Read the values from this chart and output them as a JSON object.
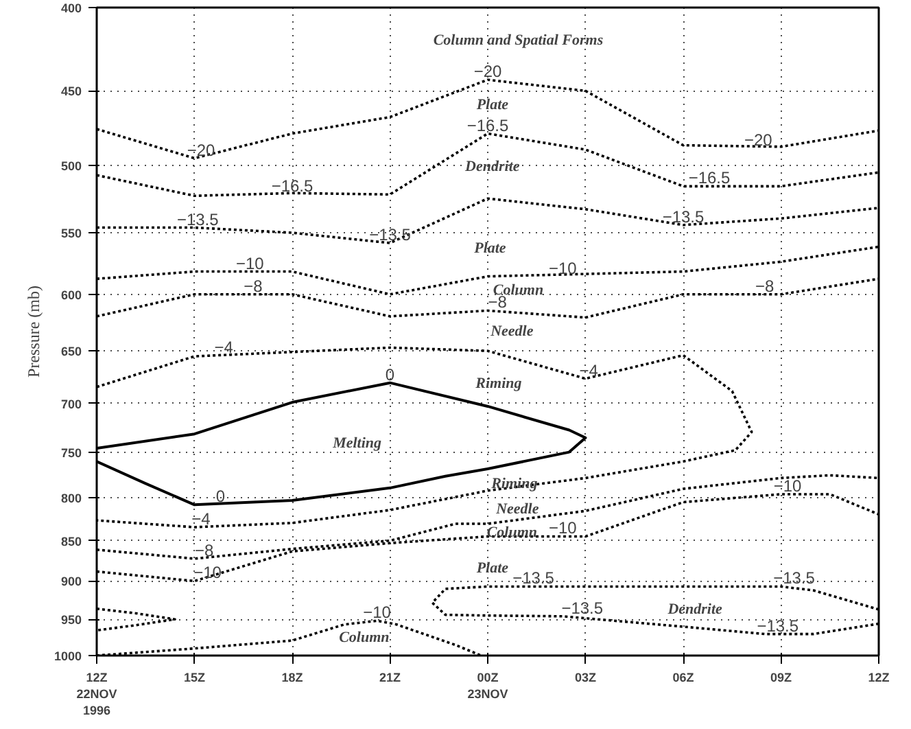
{
  "chart_data": {
    "type": "line",
    "ylabel": "Pressure (mb)",
    "log": true,
    "grid": true,
    "line_style": "dotted",
    "xlim": [
      "1996-11-22T12:00",
      "1996-11-23T12:00"
    ],
    "xticks": [
      {
        "value": "1996-11-22T12:00",
        "label": "12Z\n22NOV\n1996"
      },
      {
        "value": "1996-11-22T15:00",
        "label": "15Z"
      },
      {
        "value": "1996-11-22T18:00",
        "label": "18Z"
      },
      {
        "value": "1996-11-22T21:00",
        "label": "21Z"
      },
      {
        "value": "1996-11-23T00:00",
        "label": "00Z\n23NOV"
      },
      {
        "value": "1996-11-23T03:00",
        "label": "03Z"
      },
      {
        "value": "1996-11-23T06:00",
        "label": "06Z"
      },
      {
        "value": "1996-11-23T09:00",
        "label": "09Z"
      },
      {
        "value": "1996-11-23T12:00",
        "label": "12Z"
      }
    ],
    "ylim": [
      1000,
      400
    ],
    "yticks": [
      400,
      450,
      500,
      550,
      600,
      650,
      700,
      750,
      800,
      850,
      900,
      950,
      1000
    ],
    "series": [
      {
        "color": "#000000",
        "x": [
          "1996-11-22T12:00",
          "1996-11-22T15:00",
          "1996-11-22T18:00",
          "1996-11-22T21:00",
          "1996-11-23T00:00",
          "1996-11-23T03:00",
          "1996-11-23T06:00",
          "1996-11-23T09:00",
          "1996-11-23T12:00"
        ],
        "values": [
          475,
          495,
          478,
          467,
          443,
          450,
          486,
          487,
          476
        ]
      },
      {
        "color": "#000000",
        "x": [
          "1996-11-22T12:00",
          "1996-11-22T15:00",
          "1996-11-22T18:00",
          "1996-11-22T21:00",
          "1996-11-23T00:00",
          "1996-11-23T03:00",
          "1996-11-23T06:00",
          "1996-11-23T09:00",
          "1996-11-23T12:00"
        ],
        "values": [
          507,
          522,
          520,
          521,
          478,
          489,
          515,
          515,
          505
        ]
      },
      {
        "color": "#000000",
        "x": [
          "1996-11-22T12:00",
          "1996-11-22T15:00",
          "1996-11-22T18:00",
          "1996-11-22T21:00",
          "1996-11-23T00:00",
          "1996-11-23T03:00",
          "1996-11-23T06:00",
          "1996-11-23T09:00",
          "1996-11-23T12:00"
        ],
        "values": [
          546,
          546,
          550,
          558,
          524,
          532,
          544,
          539,
          531
        ]
      },
      {
        "color": "#000000",
        "x": [
          "1996-11-22T12:00",
          "1996-11-22T15:00",
          "1996-11-22T18:00",
          "1996-11-22T21:00",
          "1996-11-23T00:00",
          "1996-11-23T03:00",
          "1996-11-23T06:00",
          "1996-11-23T09:00",
          "1996-11-23T12:00"
        ],
        "values": [
          587,
          581,
          581,
          600,
          585,
          583,
          581,
          573,
          561
        ]
      },
      {
        "color": "#000000",
        "x": [
          "1996-11-22T12:00",
          "1996-11-22T15:00",
          "1996-11-22T18:00",
          "1996-11-22T21:00",
          "1996-11-23T00:00",
          "1996-11-23T03:00",
          "1996-11-23T06:00",
          "1996-11-23T09:00",
          "1996-11-23T12:00"
        ],
        "values": [
          619,
          600,
          600,
          619,
          614,
          620,
          600,
          600,
          587
        ]
      },
      {
        "color": "#000000",
        "x": [
          "1996-11-22T12:00",
          "1996-11-22T15:00",
          "1996-11-22T18:00",
          "1996-11-22T21:00",
          "1996-11-23T00:00",
          "1996-11-23T03:00",
          "1996-11-23T06:00",
          "1996-11-23T07:30",
          "1996-11-23T08:06",
          "1996-11-23T07:36",
          "1996-11-23T06:00",
          "1996-11-23T03:00",
          "1996-11-23T00:00",
          "1996-11-22T21:00",
          "1996-11-22T18:00",
          "1996-11-22T15:00",
          "1996-11-22T12:00"
        ],
        "values": [
          684,
          655,
          651,
          647,
          650,
          676,
          654,
          688,
          729,
          748,
          760,
          778,
          792,
          814,
          829,
          834,
          826
        ]
      },
      {
        "color": "#000000",
        "line_style": "solid",
        "x": [
          "1996-11-22T12:00",
          "1996-11-22T15:00",
          "1996-11-22T18:00",
          "1996-11-22T21:00",
          "1996-11-23T00:00",
          "1996-11-23T02:30",
          "1996-11-23T03:00",
          "1996-11-23T02:30",
          "1996-11-23T00:00",
          "1996-11-22T22:42",
          "1996-11-22T21:00",
          "1996-11-22T18:00",
          "1996-11-22T15:00",
          "1996-11-22T13:30",
          "1996-11-22T12:00"
        ],
        "values": [
          746,
          731,
          699,
          680,
          703,
          727,
          735,
          750,
          768,
          776,
          789,
          803,
          808,
          784,
          760
        ]
      },
      {
        "color": "#000000",
        "x": [
          "1996-11-22T12:00",
          "1996-11-22T15:00",
          "1996-11-22T18:00",
          "1996-11-22T21:00",
          "1996-11-22T23:00",
          "1996-11-23T00:00",
          "1996-11-23T03:00",
          "1996-11-23T06:00",
          "1996-11-23T09:00",
          "1996-11-23T10:30",
          "1996-11-23T12:00"
        ],
        "values": [
          861,
          872,
          860,
          850,
          830,
          830,
          815,
          790,
          778,
          775,
          778
        ]
      },
      {
        "color": "#000000",
        "x": [
          "1996-11-22T12:00",
          "1996-11-22T15:00",
          "1996-11-22T18:00",
          "1996-11-22T21:00",
          "1996-11-23T00:00",
          "1996-11-23T03:00",
          "1996-11-23T06:00",
          "1996-11-23T09:00",
          "1996-11-23T10:30",
          "1996-11-23T12:00"
        ],
        "values": [
          888,
          900,
          863,
          853,
          845,
          845,
          805,
          796,
          796,
          819
        ]
      },
      {
        "color": "#000000",
        "x": [
          "1996-11-23T12:00",
          "1996-11-23T10:00",
          "1996-11-23T09:00",
          "1996-11-23T06:00",
          "1996-11-23T03:00",
          "1996-11-23T00:00",
          "1996-11-22T22:42",
          "1996-11-22T22:18",
          "1996-11-22T22:42",
          "1996-11-23T00:00",
          "1996-11-23T02:18",
          "1996-11-23T06:00",
          "1996-11-23T08:30",
          "1996-11-23T10:00",
          "1996-11-23T12:00"
        ],
        "values": [
          937,
          912,
          907,
          907,
          907,
          907,
          910,
          928,
          944,
          945,
          946,
          960,
          970,
          970,
          956
        ]
      },
      {
        "color": "#000000",
        "x": [
          "1996-11-22T12:00",
          "1996-11-22T13:12",
          "1996-11-22T14:24",
          "1996-11-22T13:12",
          "1996-11-22T12:00"
        ],
        "values": [
          936,
          942,
          950,
          958,
          965
        ]
      },
      {
        "color": "#000000",
        "x": [
          "1996-11-22T12:00",
          "1996-11-22T15:00",
          "1996-11-22T18:00",
          "1996-11-22T19:36",
          "1996-11-22T20:36",
          "1996-11-22T21:12",
          "1996-11-22T23:00",
          "1996-11-22T23:48"
        ],
        "values": [
          1000,
          990,
          979,
          957,
          952,
          957,
          985,
          1000
        ]
      }
    ],
    "annotations": [
      "Column and Spatial Forms",
      "Plate",
      "Dendrite",
      "Plate",
      "Column",
      "Needle",
      "Riming",
      "Melting",
      "Riming",
      "Needle",
      "Column",
      "Plate",
      "Dendrite",
      "Column",
      {
        "text": "−20",
        "x": "1996-11-22T15:12",
        "y": 495
      },
      {
        "text": "−20",
        "x": "1996-11-23T00:00",
        "y": 443
      },
      {
        "text": "−20",
        "x": "1996-11-23T08:18",
        "y": 488
      },
      {
        "text": "−16.5",
        "x": "1996-11-22T18:00",
        "y": 521
      },
      {
        "text": "−16.5",
        "x": "1996-11-23T00:00",
        "y": 478
      },
      {
        "text": "−16.5",
        "x": "1996-11-23T06:48",
        "y": 515
      },
      {
        "text": "−13.5",
        "x": "1996-11-22T15:06",
        "y": 546
      },
      {
        "text": "−13.5",
        "x": "1996-11-22T21:00",
        "y": 558
      },
      {
        "text": "−13.5",
        "x": "1996-11-23T06:00",
        "y": 544
      },
      {
        "text": "−10",
        "x": "1996-11-22T16:42",
        "y": 581
      },
      {
        "text": "−10",
        "x": "1996-11-23T02:18",
        "y": 585
      },
      {
        "text": "−8",
        "x": "1996-11-22T16:48",
        "y": 600
      },
      {
        "text": "−8",
        "x": "1996-11-23T00:18",
        "y": 614
      },
      {
        "text": "−8",
        "x": "1996-11-23T08:30",
        "y": 600
      },
      {
        "text": "−4",
        "x": "1996-11-22T15:54",
        "y": 654
      },
      {
        "text": "−4",
        "x": "1996-11-23T03:06",
        "y": 676
      },
      {
        "text": "0",
        "x": "1996-11-22T21:00",
        "y": 680
      },
      {
        "text": "0",
        "x": "1996-11-22T15:48",
        "y": 808
      },
      {
        "text": "−4",
        "x": "1996-11-22T15:12",
        "y": 834
      },
      {
        "text": "−8",
        "x": "1996-11-22T15:18",
        "y": 872
      },
      {
        "text": "−10",
        "x": "1996-11-22T15:24",
        "y": 900
      },
      {
        "text": "−10",
        "x": "1996-11-23T02:18",
        "y": 845
      },
      {
        "text": "−10",
        "x": "1996-11-23T09:12",
        "y": 796
      },
      {
        "text": "−13.5",
        "x": "1996-11-23T01:24",
        "y": 907
      },
      {
        "text": "−13.5",
        "x": "1996-11-23T09:24",
        "y": 907
      },
      {
        "text": "−13.5",
        "x": "1996-11-23T02:54",
        "y": 946
      },
      {
        "text": "−13.5",
        "x": "1996-11-23T08:54",
        "y": 970
      },
      {
        "text": "−10",
        "x": "1996-11-22T20:36",
        "y": 952
      }
    ]
  }
}
